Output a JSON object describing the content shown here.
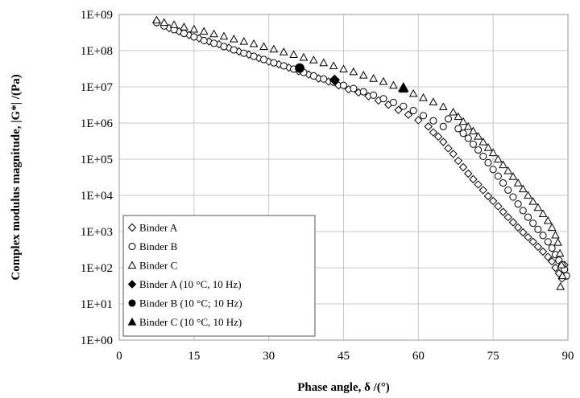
{
  "chart_data": {
    "type": "scatter",
    "title": "",
    "xlabel": "Phase angle, δ /(°)",
    "ylabel": "Complex modulus magnitude, |G*| /(Pa)",
    "xlim": [
      0,
      90
    ],
    "ylim": [
      1,
      1000000000
    ],
    "yscale": "log",
    "grid": true,
    "legend_position": "bottom-left",
    "x_ticks": [
      "0",
      "15",
      "30",
      "45",
      "60",
      "75",
      "90"
    ],
    "y_ticks": [
      "1E+00",
      "1E+01",
      "1E+02",
      "1E+03",
      "1E+04",
      "1E+05",
      "1E+06",
      "1E+07",
      "1E+08",
      "1E+09"
    ],
    "series": [
      {
        "name": "Binder A",
        "marker": "diamond-open",
        "points": [
          [
            7.5,
            600000000
          ],
          [
            10,
            420000000
          ],
          [
            12,
            340000000
          ],
          [
            14,
            270000000
          ],
          [
            16,
            220000000
          ],
          [
            18,
            180000000
          ],
          [
            20,
            150000000
          ],
          [
            22,
            120000000
          ],
          [
            24,
            95000000
          ],
          [
            26,
            78000000
          ],
          [
            28,
            62000000
          ],
          [
            30,
            50000000
          ],
          [
            32,
            42000000
          ],
          [
            34,
            34000000
          ],
          [
            36,
            27000000
          ],
          [
            38,
            22000000
          ],
          [
            40,
            17000000
          ],
          [
            42,
            14000000
          ],
          [
            44,
            11000000
          ],
          [
            46,
            8500000
          ],
          [
            48,
            7000000
          ],
          [
            50,
            5500000
          ],
          [
            52,
            4200000
          ],
          [
            54,
            3200000
          ],
          [
            56,
            2300000
          ],
          [
            58,
            1700000
          ],
          [
            60,
            1200000
          ],
          [
            62,
            800000
          ],
          [
            63,
            550000
          ],
          [
            64,
            420000
          ],
          [
            65,
            300000
          ],
          [
            66,
            200000
          ],
          [
            67,
            140000
          ],
          [
            68,
            90000
          ],
          [
            69,
            60000
          ],
          [
            70,
            40000
          ],
          [
            71,
            28000
          ],
          [
            72,
            20000
          ],
          [
            73,
            14000
          ],
          [
            74,
            9500
          ],
          [
            75,
            7000
          ],
          [
            76,
            5000
          ],
          [
            77,
            3500
          ],
          [
            78,
            2500
          ],
          [
            79,
            1800
          ],
          [
            80,
            1300
          ],
          [
            81,
            950
          ],
          [
            82,
            700
          ],
          [
            83,
            520
          ],
          [
            84,
            380
          ],
          [
            85,
            280
          ],
          [
            86,
            200
          ],
          [
            86.8,
            150
          ],
          [
            87.5,
            100
          ],
          [
            88.2,
            70
          ],
          [
            88.8,
            50
          ],
          [
            89.3,
            120
          ],
          [
            89.6,
            60
          ]
        ]
      },
      {
        "name": "Binder B",
        "marker": "circle-open",
        "points": [
          [
            7.5,
            600000000
          ],
          [
            9,
            480000000
          ],
          [
            11,
            380000000
          ],
          [
            13,
            300000000
          ],
          [
            15,
            240000000
          ],
          [
            17,
            190000000
          ],
          [
            19,
            160000000
          ],
          [
            21,
            130000000
          ],
          [
            23,
            105000000
          ],
          [
            25,
            85000000
          ],
          [
            27,
            70000000
          ],
          [
            29,
            57000000
          ],
          [
            31,
            46000000
          ],
          [
            33,
            38000000
          ],
          [
            35,
            31000000
          ],
          [
            37,
            25000000
          ],
          [
            39,
            20000000
          ],
          [
            41,
            16500000
          ],
          [
            43,
            13500000
          ],
          [
            45,
            11000000
          ],
          [
            47,
            9000000
          ],
          [
            49,
            7300000
          ],
          [
            51,
            5900000
          ],
          [
            53,
            4700000
          ],
          [
            55,
            3700000
          ],
          [
            57,
            2900000
          ],
          [
            59,
            2200000
          ],
          [
            61,
            1600000
          ],
          [
            63,
            1150000
          ],
          [
            65,
            800000
          ],
          [
            66,
            1300000
          ],
          [
            68,
            700000
          ],
          [
            69,
            520000
          ],
          [
            70,
            380000
          ],
          [
            71,
            260000
          ],
          [
            72,
            180000
          ],
          [
            73,
            120000
          ],
          [
            74,
            80000
          ],
          [
            75,
            52000
          ],
          [
            76,
            34000
          ],
          [
            77,
            22000
          ],
          [
            78,
            14000
          ],
          [
            79,
            9000
          ],
          [
            80,
            5800
          ],
          [
            81,
            3800
          ],
          [
            82,
            2500
          ],
          [
            83,
            1700
          ],
          [
            84,
            1150
          ],
          [
            85,
            780
          ],
          [
            86,
            520
          ],
          [
            86.8,
            350
          ],
          [
            87.5,
            230
          ],
          [
            88.2,
            160
          ],
          [
            88.8,
            120
          ],
          [
            89.3,
            90
          ],
          [
            89.7,
            60
          ]
        ]
      },
      {
        "name": "Binder C",
        "marker": "triangle-open",
        "points": [
          [
            7.5,
            700000000
          ],
          [
            9,
            600000000
          ],
          [
            11,
            520000000
          ],
          [
            13,
            450000000
          ],
          [
            15,
            390000000
          ],
          [
            17,
            340000000
          ],
          [
            19,
            290000000
          ],
          [
            21,
            250000000
          ],
          [
            23,
            210000000
          ],
          [
            25,
            180000000
          ],
          [
            27,
            155000000
          ],
          [
            29,
            130000000
          ],
          [
            31,
            110000000
          ],
          [
            33,
            92000000
          ],
          [
            35,
            78000000
          ],
          [
            37,
            65000000
          ],
          [
            39,
            55000000
          ],
          [
            41,
            46000000
          ],
          [
            43,
            38000000
          ],
          [
            45,
            31000000
          ],
          [
            47,
            26000000
          ],
          [
            49,
            21000000
          ],
          [
            51,
            17000000
          ],
          [
            53,
            14000000
          ],
          [
            55,
            11000000
          ],
          [
            57,
            8500000
          ],
          [
            59,
            6500000
          ],
          [
            61,
            5000000
          ],
          [
            63,
            3800000
          ],
          [
            65,
            2800000
          ],
          [
            67,
            2000000
          ],
          [
            68,
            1500000
          ],
          [
            69,
            1100000
          ],
          [
            70,
            800000
          ],
          [
            71,
            600000
          ],
          [
            72,
            430000
          ],
          [
            73,
            300000
          ],
          [
            74,
            210000
          ],
          [
            75,
            150000
          ],
          [
            76,
            100000
          ],
          [
            77,
            70000
          ],
          [
            78,
            48000
          ],
          [
            79,
            33000
          ],
          [
            80,
            22000
          ],
          [
            81,
            15000
          ],
          [
            82,
            10000
          ],
          [
            83,
            6800
          ],
          [
            84,
            4600
          ],
          [
            85,
            3100
          ],
          [
            86,
            2000
          ],
          [
            86.8,
            1300
          ],
          [
            87.5,
            800
          ],
          [
            88,
            500
          ],
          [
            88.4,
            250
          ],
          [
            88.7,
            120
          ],
          [
            88.9,
            60
          ],
          [
            88.5,
            30
          ]
        ]
      },
      {
        "name": "Binder A (10 °C, 10 Hz)",
        "marker": "diamond-filled",
        "points": [
          [
            43.2,
            15500000
          ]
        ]
      },
      {
        "name": "Binder B (10 °C; 10 Hz)",
        "marker": "circle-filled",
        "points": [
          [
            36.2,
            33000000
          ]
        ]
      },
      {
        "name": "Binder C (10 °C, 10 Hz)",
        "marker": "triangle-filled",
        "points": [
          [
            57,
            9500000
          ]
        ]
      }
    ]
  }
}
